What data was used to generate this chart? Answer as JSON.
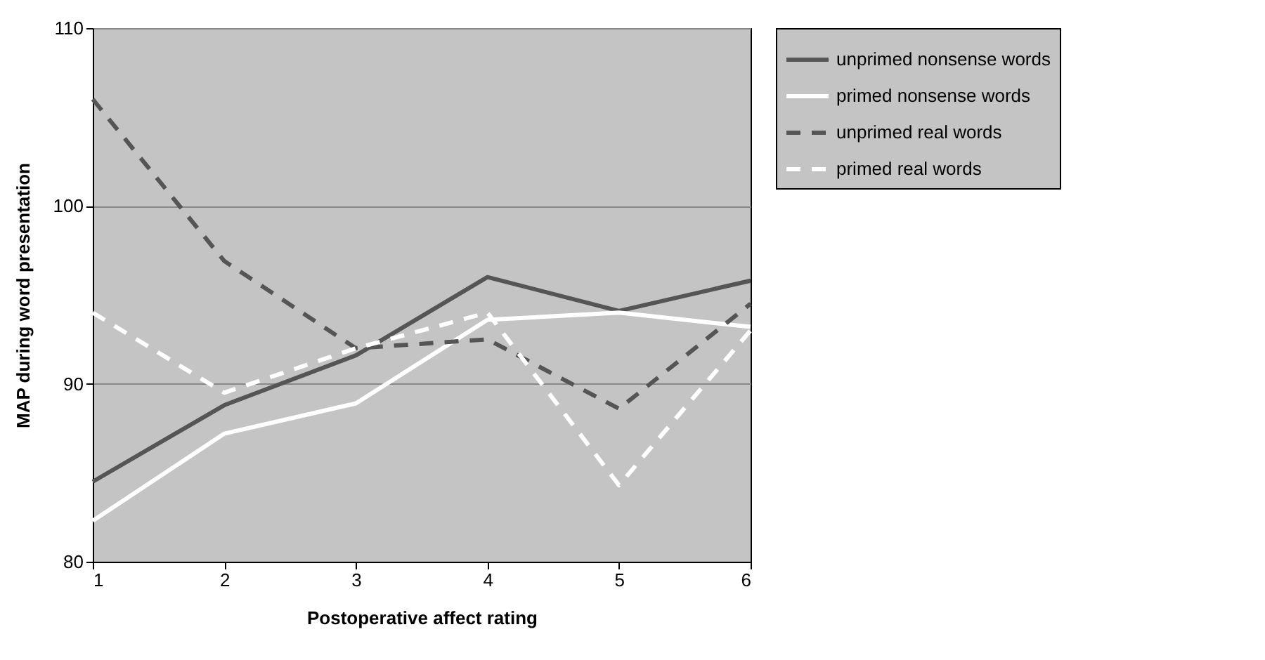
{
  "chart_data": {
    "type": "line",
    "xlabel": "Postoperative affect rating",
    "ylabel": "MAP during word presentation",
    "x": [
      1,
      2,
      3,
      4,
      5,
      6
    ],
    "series": [
      {
        "name": "unprimed nonsense words",
        "color": "#555555",
        "line_style": "solid",
        "values": [
          84.5,
          88.8,
          91.6,
          96,
          94.1,
          95.8
        ]
      },
      {
        "name": "primed nonsense words",
        "color": "#ffffff",
        "line_style": "solid",
        "values": [
          82.3,
          87.2,
          88.9,
          93.6,
          94,
          93.2
        ]
      },
      {
        "name": "unprimed real words",
        "color": "#555555",
        "line_style": "dashed",
        "values": [
          106,
          96.9,
          92,
          92.5,
          88.6,
          94.5
        ]
      },
      {
        "name": "primed real words",
        "color": "#ffffff",
        "line_style": "dashed",
        "values": [
          94,
          89.5,
          92,
          94,
          84.3,
          93
        ]
      }
    ],
    "xlim": [
      1,
      6
    ],
    "xticks": [
      1,
      2,
      3,
      4,
      5,
      6
    ],
    "ylim": [
      80,
      110
    ],
    "yticks": [
      80,
      90,
      100,
      110
    ],
    "grid": "y",
    "legend": "right"
  }
}
